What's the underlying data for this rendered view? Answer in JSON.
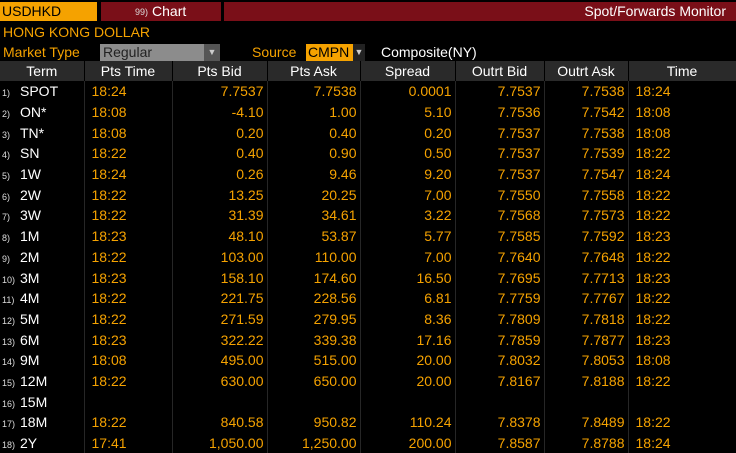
{
  "topbar": {
    "ticker": "USDHKD",
    "chart_num": "99)",
    "chart_label": "Chart",
    "title": "Spot/Forwards Monitor"
  },
  "currency_name": "HONG KONG DOLLAR",
  "controls": {
    "market_type_label": "Market Type",
    "market_type_value": "Regular",
    "source_label": "Source",
    "source_value": "CMPN",
    "composite_text": "Composite(NY)"
  },
  "columns": [
    "Term",
    "Pts Time",
    "Pts Bid",
    "Pts Ask",
    "Spread",
    "Outrt Bid",
    "Outrt Ask",
    "Time"
  ],
  "rows": [
    {
      "idx": "1)",
      "term": "SPOT",
      "pts_time": "18:24",
      "pts_bid": "7.7537",
      "pts_ask": "7.7538",
      "spread": "0.0001",
      "outrt_bid": "7.7537",
      "outrt_ask": "7.7538",
      "time": "18:24"
    },
    {
      "idx": "2)",
      "term": "ON*",
      "pts_time": "18:08",
      "pts_bid": "-4.10",
      "pts_ask": "1.00",
      "spread": "5.10",
      "outrt_bid": "7.7536",
      "outrt_ask": "7.7542",
      "time": "18:08"
    },
    {
      "idx": "3)",
      "term": "TN*",
      "pts_time": "18:08",
      "pts_bid": "0.20",
      "pts_ask": "0.40",
      "spread": "0.20",
      "outrt_bid": "7.7537",
      "outrt_ask": "7.7538",
      "time": "18:08"
    },
    {
      "idx": "4)",
      "term": "SN",
      "pts_time": "18:22",
      "pts_bid": "0.40",
      "pts_ask": "0.90",
      "spread": "0.50",
      "outrt_bid": "7.7537",
      "outrt_ask": "7.7539",
      "time": "18:22"
    },
    {
      "idx": "5)",
      "term": "1W",
      "pts_time": "18:24",
      "pts_bid": "0.26",
      "pts_ask": "9.46",
      "spread": "9.20",
      "outrt_bid": "7.7537",
      "outrt_ask": "7.7547",
      "time": "18:24"
    },
    {
      "idx": "6)",
      "term": "2W",
      "pts_time": "18:22",
      "pts_bid": "13.25",
      "pts_ask": "20.25",
      "spread": "7.00",
      "outrt_bid": "7.7550",
      "outrt_ask": "7.7558",
      "time": "18:22"
    },
    {
      "idx": "7)",
      "term": "3W",
      "pts_time": "18:22",
      "pts_bid": "31.39",
      "pts_ask": "34.61",
      "spread": "3.22",
      "outrt_bid": "7.7568",
      "outrt_ask": "7.7573",
      "time": "18:22"
    },
    {
      "idx": "8)",
      "term": "1M",
      "pts_time": "18:23",
      "pts_bid": "48.10",
      "pts_ask": "53.87",
      "spread": "5.77",
      "outrt_bid": "7.7585",
      "outrt_ask": "7.7592",
      "time": "18:23"
    },
    {
      "idx": "9)",
      "term": "2M",
      "pts_time": "18:22",
      "pts_bid": "103.00",
      "pts_ask": "110.00",
      "spread": "7.00",
      "outrt_bid": "7.7640",
      "outrt_ask": "7.7648",
      "time": "18:22"
    },
    {
      "idx": "10)",
      "term": "3M",
      "pts_time": "18:23",
      "pts_bid": "158.10",
      "pts_ask": "174.60",
      "spread": "16.50",
      "outrt_bid": "7.7695",
      "outrt_ask": "7.7713",
      "time": "18:23"
    },
    {
      "idx": "11)",
      "term": "4M",
      "pts_time": "18:22",
      "pts_bid": "221.75",
      "pts_ask": "228.56",
      "spread": "6.81",
      "outrt_bid": "7.7759",
      "outrt_ask": "7.7767",
      "time": "18:22"
    },
    {
      "idx": "12)",
      "term": "5M",
      "pts_time": "18:22",
      "pts_bid": "271.59",
      "pts_ask": "279.95",
      "spread": "8.36",
      "outrt_bid": "7.7809",
      "outrt_ask": "7.7818",
      "time": "18:22"
    },
    {
      "idx": "13)",
      "term": "6M",
      "pts_time": "18:23",
      "pts_bid": "322.22",
      "pts_ask": "339.38",
      "spread": "17.16",
      "outrt_bid": "7.7859",
      "outrt_ask": "7.7877",
      "time": "18:23"
    },
    {
      "idx": "14)",
      "term": "9M",
      "pts_time": "18:08",
      "pts_bid": "495.00",
      "pts_ask": "515.00",
      "spread": "20.00",
      "outrt_bid": "7.8032",
      "outrt_ask": "7.8053",
      "time": "18:08"
    },
    {
      "idx": "15)",
      "term": "12M",
      "pts_time": "18:22",
      "pts_bid": "630.00",
      "pts_ask": "650.00",
      "spread": "20.00",
      "outrt_bid": "7.8167",
      "outrt_ask": "7.8188",
      "time": "18:22"
    },
    {
      "idx": "16)",
      "term": "15M",
      "pts_time": "",
      "pts_bid": "",
      "pts_ask": "",
      "spread": "",
      "outrt_bid": "",
      "outrt_ask": "",
      "time": ""
    },
    {
      "idx": "17)",
      "term": "18M",
      "pts_time": "18:22",
      "pts_bid": "840.58",
      "pts_ask": "950.82",
      "spread": "110.24",
      "outrt_bid": "7.8378",
      "outrt_ask": "7.8489",
      "time": "18:22"
    },
    {
      "idx": "18)",
      "term": "2Y",
      "pts_time": "17:41",
      "pts_bid": "1,050.00",
      "pts_ask": "1,250.00",
      "spread": "200.00",
      "outrt_bid": "7.8587",
      "outrt_ask": "7.8788",
      "time": "18:24"
    }
  ],
  "colors": {
    "accent_amber": "#f5a200",
    "bar_red": "#7a0f18",
    "header_gray": "#2a2a2a"
  }
}
